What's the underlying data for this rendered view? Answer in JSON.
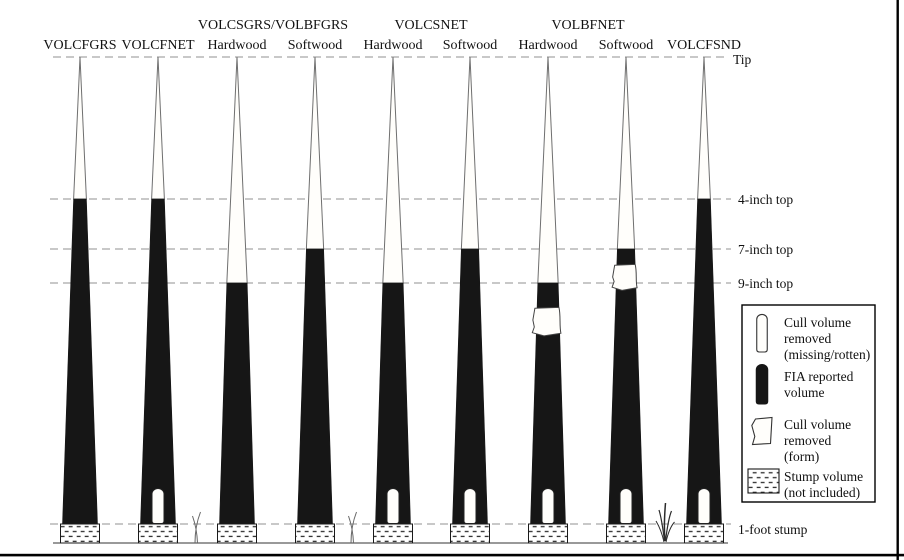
{
  "groups": [
    {
      "label": "VOLCSGRS/VOLBFGRS"
    },
    {
      "label": "VOLCSNET"
    },
    {
      "label": "VOLBFNET"
    }
  ],
  "trees": [
    {
      "label": "VOLCFGRS",
      "merch_top": "4-inch",
      "cull_missing_rotten": false,
      "cull_form": false
    },
    {
      "label": "VOLCFNET",
      "merch_top": "4-inch",
      "cull_missing_rotten": true,
      "cull_form": false
    },
    {
      "label": "Hardwood",
      "group": "VOLCSGRS/VOLBFGRS",
      "merch_top": "9-inch",
      "cull_missing_rotten": false,
      "cull_form": false
    },
    {
      "label": "Softwood",
      "group": "VOLCSGRS/VOLBFGRS",
      "merch_top": "7-inch",
      "cull_missing_rotten": false,
      "cull_form": false
    },
    {
      "label": "Hardwood",
      "group": "VOLCSNET",
      "merch_top": "9-inch",
      "cull_missing_rotten": true,
      "cull_form": false
    },
    {
      "label": "Softwood",
      "group": "VOLCSNET",
      "merch_top": "7-inch",
      "cull_missing_rotten": true,
      "cull_form": false
    },
    {
      "label": "Hardwood",
      "group": "VOLBFNET",
      "merch_top": "9-inch",
      "cull_missing_rotten": true,
      "cull_form": true
    },
    {
      "label": "Softwood",
      "group": "VOLBFNET",
      "merch_top": "7-inch",
      "cull_missing_rotten": true,
      "cull_form": true
    },
    {
      "label": "VOLCFSND",
      "merch_top": "4-inch",
      "cull_missing_rotten": true,
      "cull_form": false
    }
  ],
  "axis": {
    "tip": "Tip",
    "top4": "4-inch top",
    "top7": "7-inch top",
    "top9": "9-inch top",
    "stump": "1-foot stump"
  },
  "legend": {
    "items": [
      {
        "icon": "cull-missing-rotten-icon",
        "lines": [
          "Cull volume",
          "removed",
          "(missing/rotten)"
        ]
      },
      {
        "icon": "fia-reported-volume-icon",
        "lines": [
          "FIA reported",
          "volume"
        ]
      },
      {
        "icon": "cull-form-icon",
        "lines": [
          "Cull volume",
          "removed",
          "(form)"
        ]
      },
      {
        "icon": "stump-volume-icon",
        "lines": [
          "Stump volume",
          "(not included)"
        ]
      }
    ]
  },
  "colors": {
    "volume_fill": "#161616",
    "dashed_line": "#a6a6a6",
    "tree_outline": "#6f6f6f",
    "frame": "#000000"
  }
}
